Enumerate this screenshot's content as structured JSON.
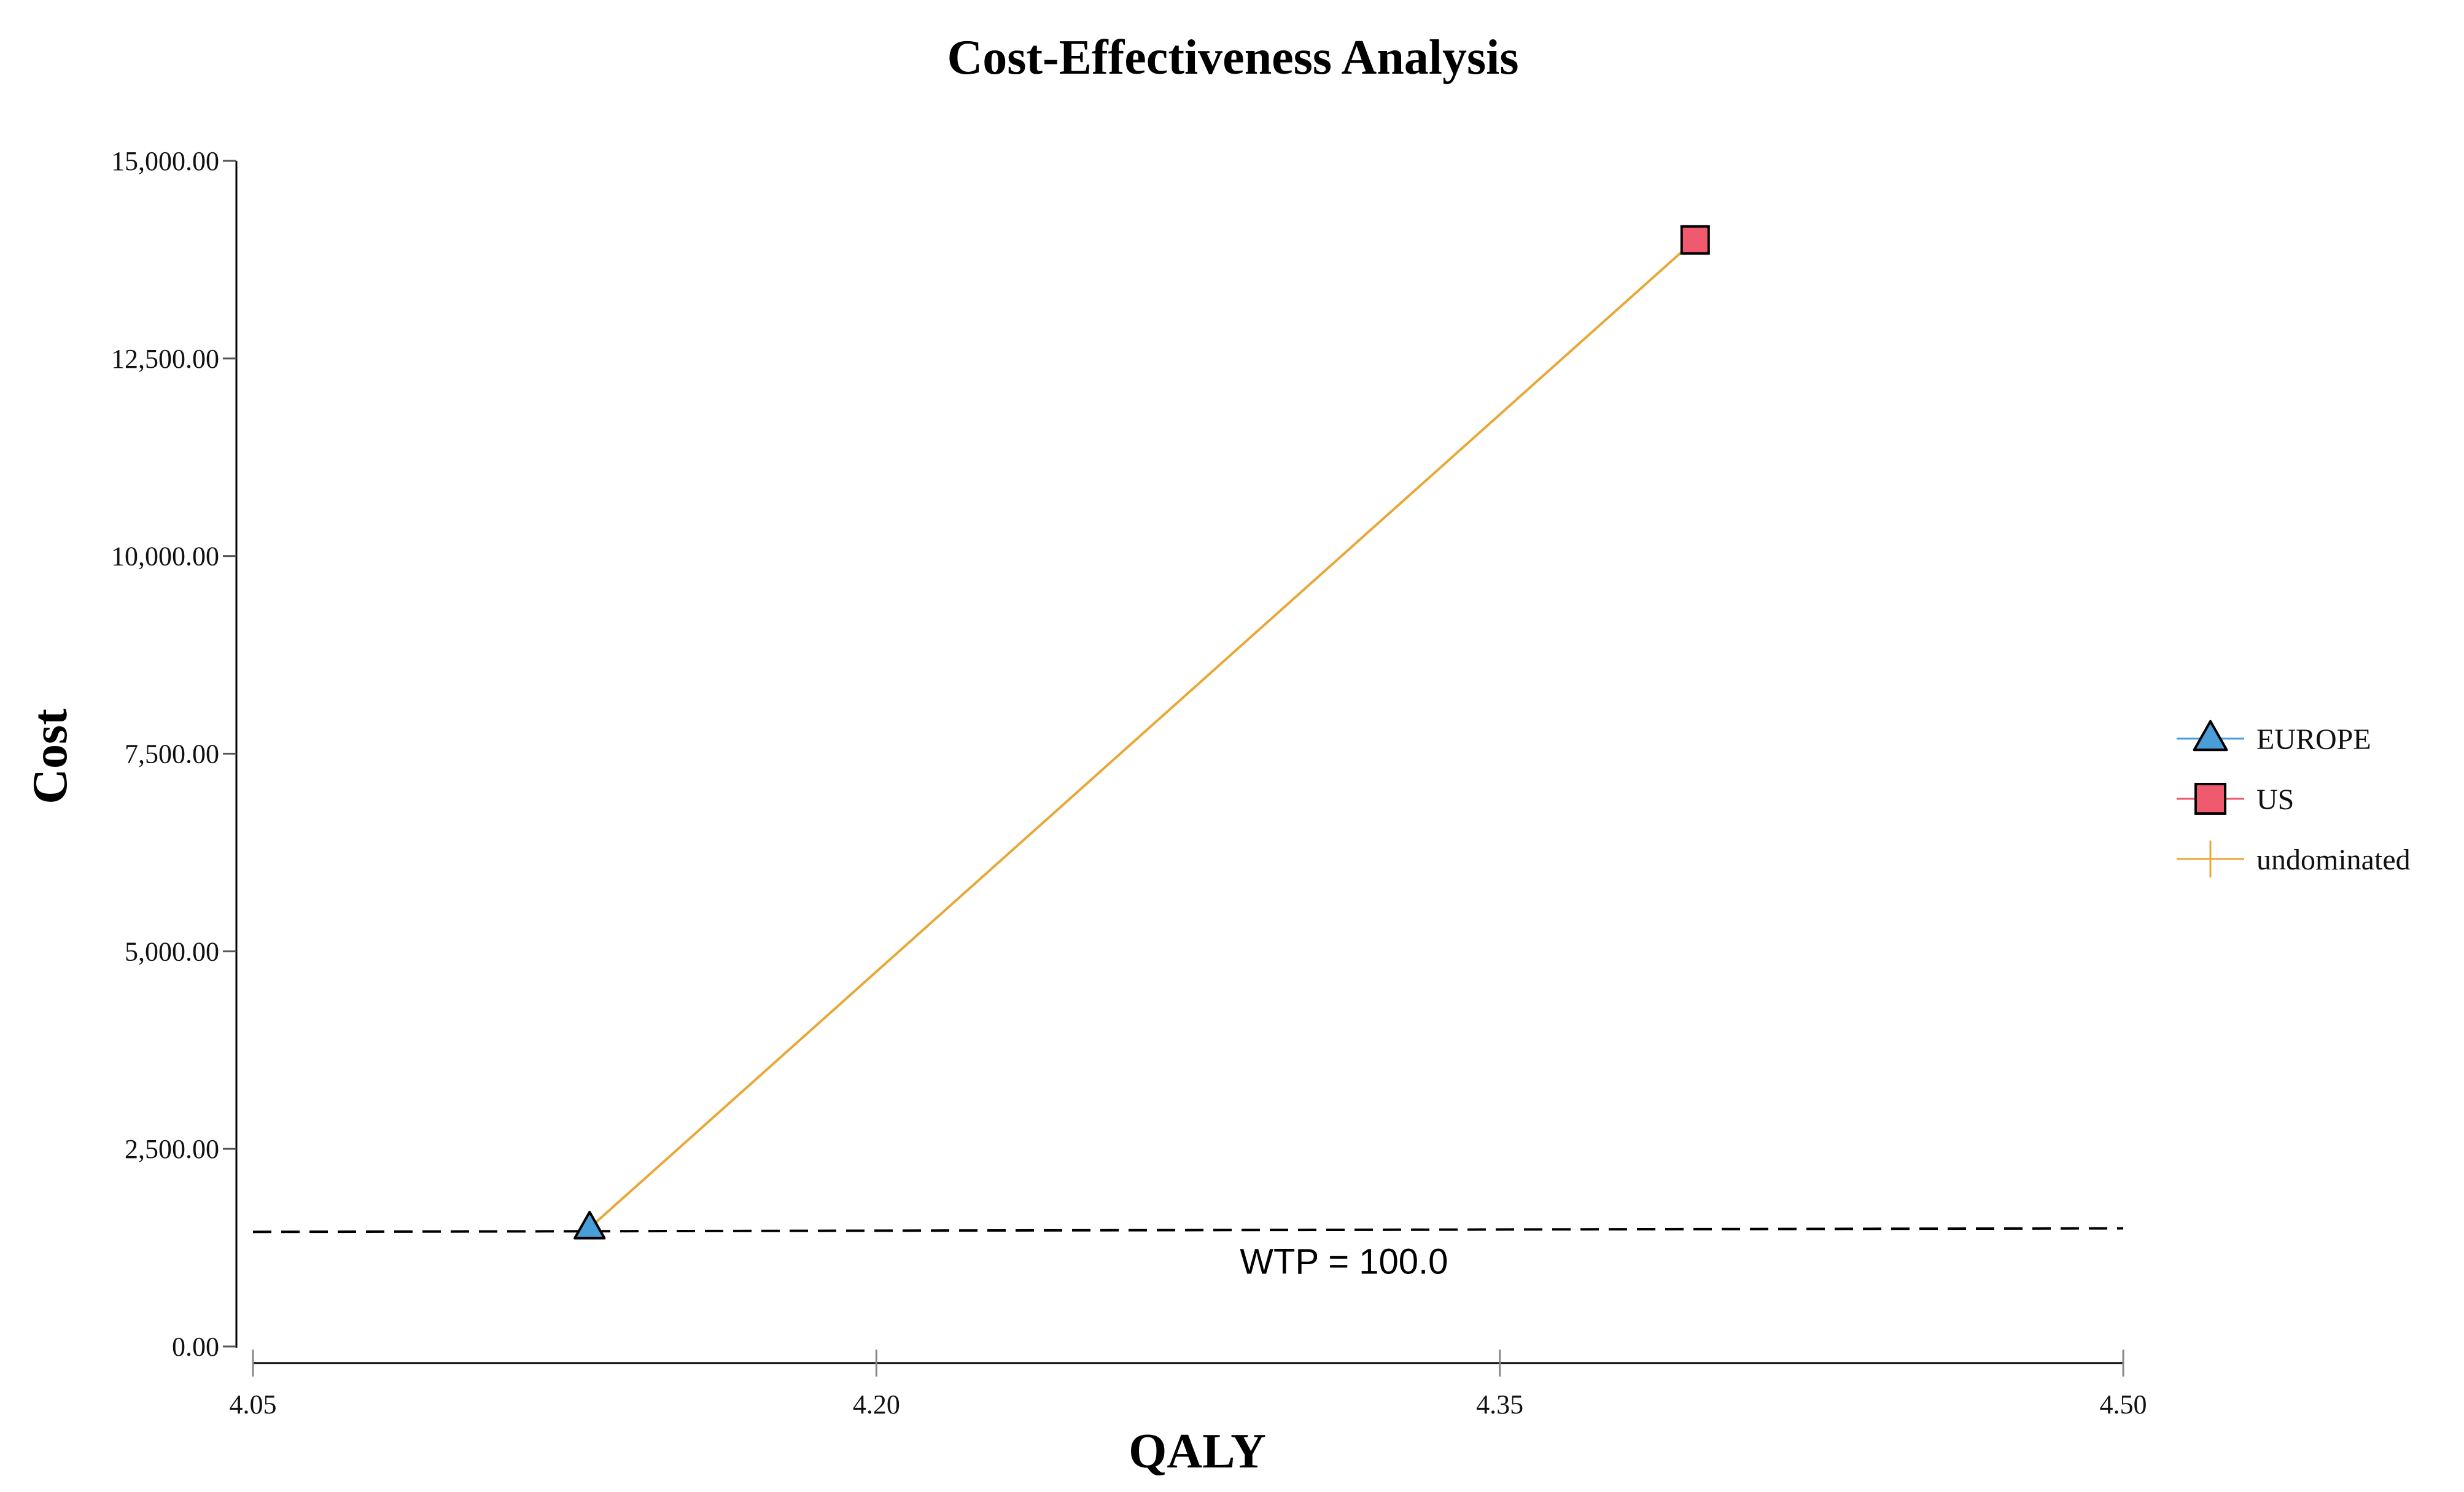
{
  "chart_data": {
    "type": "scatter",
    "title": "Cost-Effectiveness Analysis",
    "xlabel": "QALY",
    "ylabel": "Cost",
    "xlim": [
      4.05,
      4.5
    ],
    "ylim": [
      0,
      15000
    ],
    "x_ticks": [
      "4.05",
      "4.20",
      "4.35",
      "4.50"
    ],
    "x_tick_values": [
      4.05,
      4.2,
      4.35,
      4.5
    ],
    "y_ticks": [
      "0.00",
      "2,500.00",
      "5,000.00",
      "7,500.00",
      "10,000.00",
      "12,500.00",
      "15,000.00"
    ],
    "y_tick_values": [
      0,
      2500,
      5000,
      7500,
      10000,
      12500,
      15000
    ],
    "grid": false,
    "legend_position": "right",
    "series": [
      {
        "name": "EUROPE",
        "marker": "triangle",
        "color": "#4a9ed8",
        "x": [
          4.131
        ],
        "y": [
          1500
        ]
      },
      {
        "name": "US",
        "marker": "square",
        "color": "#ef5a6e",
        "x": [
          4.397
        ],
        "y": [
          14000
        ]
      },
      {
        "name": "undominated",
        "marker": "line",
        "color": "#e8a838",
        "x": [
          4.131,
          4.397
        ],
        "y": [
          1500,
          14000
        ]
      }
    ],
    "wtp_line": {
      "label": "WTP = 100.0",
      "x": [
        4.05,
        4.5
      ],
      "y": [
        1450,
        1495
      ]
    }
  }
}
